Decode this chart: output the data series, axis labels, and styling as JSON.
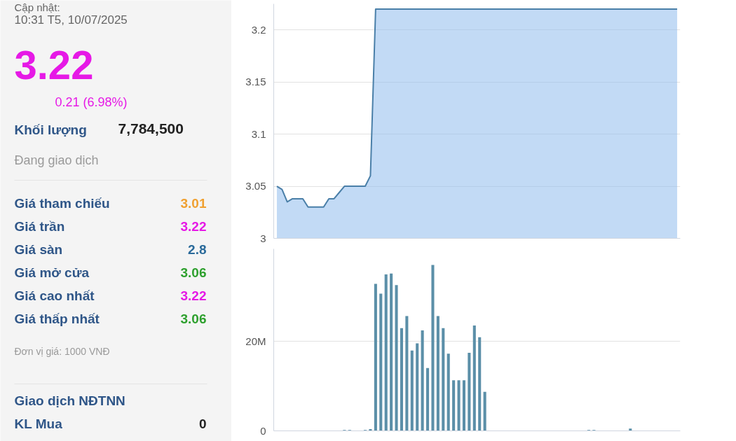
{
  "chart_data": [
    {
      "type": "other",
      "title": "Cập nhật:",
      "subtitle": "10:31 T5, 10/07/2025",
      "annotations": [
        "3.22",
        "0.21 (6.98%)",
        "Khối lượng",
        "7,784,500",
        "Đang giao dịch",
        "Giá tham chiếu",
        "3.01",
        "Giá trần",
        "3.22",
        "Giá sàn",
        "2.8",
        "Giá mở cửa",
        "3.06",
        "Giá cao nhất",
        "3.22",
        "Giá thấp nhất",
        "3.06",
        "Đơn vị giá: 1000 VNĐ",
        "Giao dịch NĐTNN",
        "KL Mua",
        "0"
      ]
    },
    {
      "type": "area",
      "categories": [
        null,
        null,
        null,
        null,
        null,
        null,
        null,
        null,
        null,
        null,
        null,
        null,
        null,
        null,
        null,
        null,
        null,
        null,
        null,
        null,
        null,
        null,
        null,
        null,
        null,
        null,
        null,
        null,
        null,
        null,
        null,
        null,
        null,
        null,
        null,
        null,
        null,
        null,
        null,
        null,
        null,
        null,
        null,
        null,
        null,
        null,
        null,
        null,
        null,
        null,
        null,
        null,
        null,
        null,
        null,
        null,
        null,
        null,
        null,
        null,
        null,
        null,
        null,
        null,
        null,
        null,
        null,
        null,
        null,
        null,
        null,
        null,
        null,
        null,
        null,
        null,
        null,
        null
      ],
      "series": [
        {
          "color": "#4a7fa8",
          "values": [
            3.05,
            3.047,
            3.035,
            3.038,
            3.038,
            3.038,
            3.03,
            3.03,
            3.03,
            3.03,
            3.038,
            3.038,
            3.044,
            3.05,
            3.05,
            3.05,
            3.05,
            3.05,
            3.06,
            3.22,
            3.22,
            3.22,
            3.22,
            3.22,
            3.22,
            3.22,
            3.22,
            3.22,
            3.22,
            3.22,
            3.22,
            3.22,
            3.22,
            3.22,
            3.22,
            3.22,
            3.22,
            3.22,
            3.22,
            3.22,
            3.22,
            3.22,
            3.22,
            3.22,
            3.22,
            3.22,
            3.22,
            3.22,
            3.22,
            3.22,
            3.22,
            3.22,
            3.22,
            3.22,
            3.22,
            3.22,
            3.22,
            3.22,
            3.22,
            3.22,
            3.22,
            3.22,
            3.22,
            3.22,
            3.22,
            3.22,
            3.22,
            3.22,
            3.22,
            3.22,
            3.22,
            3.22,
            3.22,
            3.22,
            3.22,
            3.22,
            3.22,
            3.22
          ]
        }
      ],
      "ylim": [
        3,
        3.225
      ],
      "yticks": [
        3,
        3.05,
        3.1,
        3.15,
        3.2
      ],
      "grid": "y",
      "tick_labels": "y"
    },
    {
      "type": "bar",
      "categories": [
        null,
        null,
        null,
        null,
        null,
        null,
        null,
        null,
        null,
        null,
        null,
        null,
        null,
        null,
        null,
        null,
        null,
        null,
        null,
        null,
        null,
        null,
        null,
        null,
        null,
        null,
        null,
        null,
        null,
        null,
        null,
        null,
        null,
        null,
        null,
        null,
        null,
        null,
        null,
        null,
        null,
        null,
        null,
        null,
        null,
        null,
        null,
        null,
        null,
        null,
        null,
        null,
        null,
        null,
        null,
        null,
        null,
        null,
        null,
        null,
        null,
        null,
        null,
        null,
        null,
        null,
        null,
        null,
        null,
        null,
        null,
        null,
        null,
        null,
        null,
        null,
        null,
        null
      ],
      "series": [
        {
          "color": "#5b8fa8",
          "values": [
            0,
            0,
            0,
            0,
            0,
            0,
            0,
            0,
            0,
            0,
            0,
            0,
            0,
            0.2,
            0.2,
            0,
            0,
            0.2,
            0.4,
            32.8,
            30.6,
            34.9,
            35.1,
            32.5,
            22.9,
            25.6,
            17.9,
            19.5,
            22.4,
            14.0,
            37.0,
            25.6,
            22.9,
            17.2,
            11.3,
            11.3,
            11.3,
            17.4,
            23.5,
            20.9,
            8.7,
            0,
            0,
            0,
            0,
            0,
            0,
            0,
            0,
            0,
            0,
            0,
            0,
            0,
            0,
            0,
            0,
            0,
            0,
            0,
            0.2,
            0.2,
            0,
            0,
            0,
            0,
            0,
            0,
            0.5,
            0,
            0,
            0,
            0,
            0,
            0,
            0,
            0,
            0
          ]
        }
      ],
      "ylim": [
        0,
        40.6
      ],
      "yticks": [
        0,
        {
          "value": 20,
          "label": "20M"
        }
      ],
      "grid": "y",
      "tick_labels": "y"
    }
  ]
}
